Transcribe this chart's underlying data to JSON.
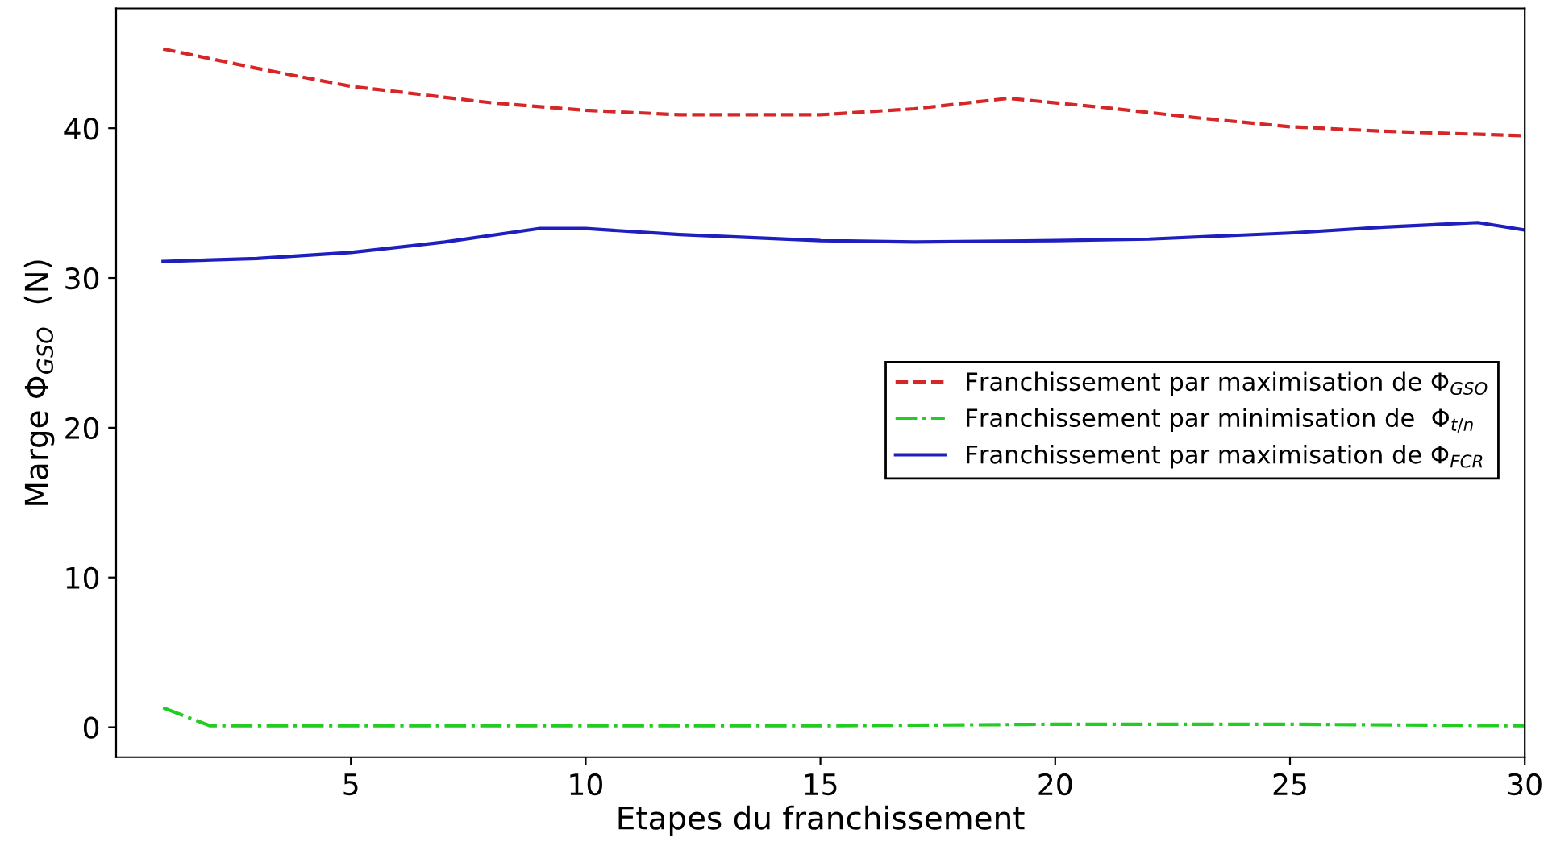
{
  "chart_data": {
    "type": "line",
    "xlabel": "Etapes du franchissement",
    "ylabel": "Marge Φ$_{GSO}$  (N)",
    "xlim": [
      0,
      30
    ],
    "ylim": [
      -2,
      48
    ],
    "xticks": [
      5,
      10,
      15,
      20,
      25,
      30
    ],
    "yticks": [
      0,
      10,
      20,
      30,
      40
    ],
    "grid": false,
    "legend": "right",
    "series": [
      {
        "name": "Franchissement par maximisation de Φ$_{GSO}$",
        "color": "#d62728",
        "line_style": "dashed",
        "x": [
          1,
          3,
          5,
          8,
          10,
          12,
          15,
          17,
          19,
          21,
          23,
          25,
          27,
          30
        ],
        "values": [
          45.3,
          44.0,
          42.8,
          41.7,
          41.2,
          40.9,
          40.9,
          41.3,
          42.0,
          41.4,
          40.7,
          40.1,
          39.8,
          39.5
        ]
      },
      {
        "name": "Franchissement par minimisation de  Φ$_{t/n}$",
        "color": "#22cc22",
        "line_style": "dashdot",
        "x": [
          1,
          2,
          5,
          10,
          15,
          20,
          25,
          30
        ],
        "values": [
          1.3,
          0.1,
          0.1,
          0.1,
          0.1,
          0.2,
          0.2,
          0.1
        ]
      },
      {
        "name": "Franchissement par maximisation de Φ$_{FCR}$",
        "color": "#1f1fbf",
        "line_style": "solid",
        "x": [
          1,
          3,
          5,
          7,
          9,
          10,
          12,
          15,
          17,
          20,
          22,
          25,
          27,
          29,
          30
        ],
        "values": [
          31.1,
          31.3,
          31.7,
          32.4,
          33.3,
          33.3,
          32.9,
          32.5,
          32.4,
          32.5,
          32.6,
          33.0,
          33.4,
          33.7,
          33.2
        ]
      }
    ]
  }
}
